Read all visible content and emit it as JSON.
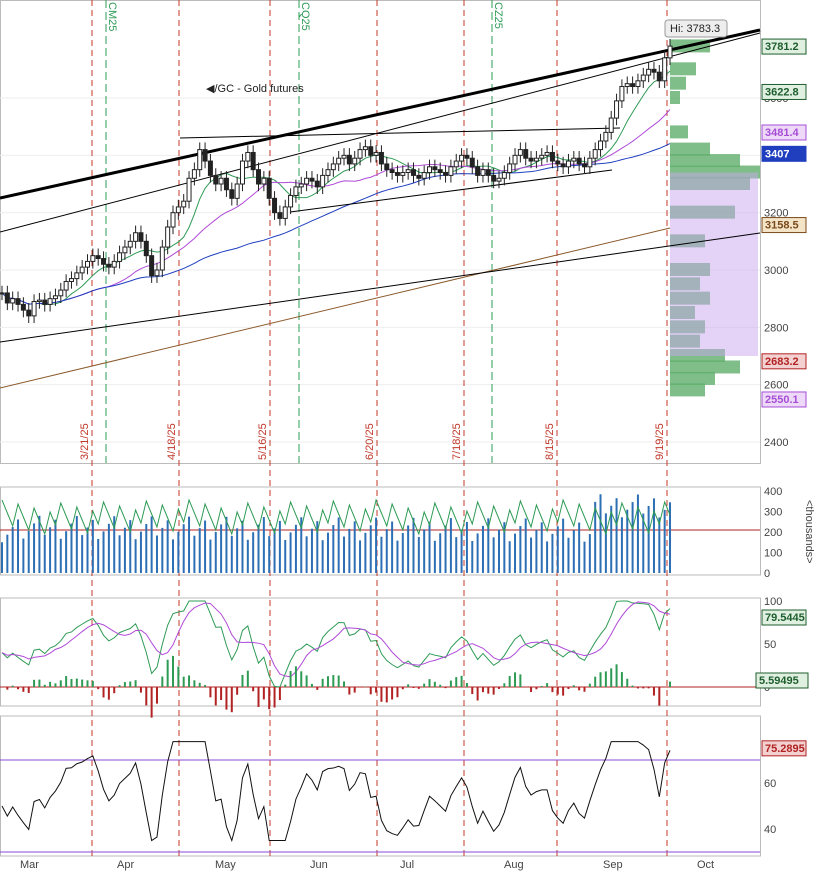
{
  "chart_data": {
    "type": "candlestick",
    "title": "/GC - Gold futures",
    "hi_label": "Hi: 3783.3",
    "price_axis": {
      "ylim": [
        2340,
        3840
      ],
      "ticks": [
        2400,
        2600,
        2800,
        3000,
        3200,
        3400,
        3600
      ]
    },
    "months": [
      "Mar",
      "Apr",
      "May",
      "Jun",
      "Jul",
      "Aug",
      "Sep",
      "Oct"
    ],
    "expiry_dates": [
      "3/21/25",
      "4/18/25",
      "5/16/25",
      "6/20/25",
      "7/18/25",
      "8/15/25",
      "9/19/25"
    ],
    "contract_marks": [
      "CM25",
      "CQ25",
      "CZ25"
    ],
    "price_tags": [
      {
        "label": "3781.2",
        "value": 3781.2,
        "color": "#1e5e2e"
      },
      {
        "label": "3622.8",
        "value": 3622.8,
        "color": "#1e5e2e"
      },
      {
        "label": "3481.4",
        "value": 3481.4,
        "color": "#a64dd6"
      },
      {
        "label": "3407",
        "value": 3407,
        "color": "#1f3fbf"
      },
      {
        "label": "3158.5",
        "value": 3158.5,
        "color": "#7a4a1a"
      },
      {
        "label": "2683.2",
        "value": 2683.2,
        "color": "#b22222"
      },
      {
        "label": "2550.1",
        "value": 2550.1,
        "color": "#a64dd6"
      }
    ],
    "closes": [
      2920,
      2885,
      2900,
      2880,
      2860,
      2840,
      2890,
      2895,
      2880,
      2900,
      2910,
      2930,
      2960,
      2970,
      2990,
      3010,
      3030,
      3050,
      3040,
      3020,
      3010,
      3030,
      3060,
      3080,
      3100,
      3130,
      3100,
      3050,
      2980,
      3000,
      3080,
      3150,
      3200,
      3220,
      3240,
      3320,
      3350,
      3420,
      3380,
      3330,
      3300,
      3320,
      3280,
      3250,
      3300,
      3380,
      3410,
      3350,
      3300,
      3320,
      3250,
      3200,
      3180,
      3220,
      3260,
      3290,
      3300,
      3320,
      3310,
      3290,
      3330,
      3350,
      3370,
      3390,
      3400,
      3370,
      3390,
      3420,
      3430,
      3400,
      3410,
      3370,
      3350,
      3340,
      3330,
      3340,
      3350,
      3330,
      3320,
      3340,
      3360,
      3350,
      3340,
      3330,
      3360,
      3380,
      3400,
      3390,
      3360,
      3330,
      3350,
      3330,
      3310,
      3320,
      3340,
      3370,
      3400,
      3420,
      3390,
      3380,
      3390,
      3400,
      3410,
      3380,
      3370,
      3360,
      3380,
      3390,
      3370,
      3360,
      3390,
      3420,
      3450,
      3480,
      3530,
      3590,
      3640,
      3650,
      3640,
      3660,
      3680,
      3700,
      3690,
      3660,
      3740,
      3781
    ],
    "volume": {
      "yticks": [
        0,
        100,
        200,
        300,
        400
      ],
      "unit_label": "<thousands>",
      "ref_level": 210
    },
    "oscillator": {
      "ticks": [
        0,
        50,
        100
      ],
      "last_main": "79.5445",
      "last_hist": "5.59495"
    },
    "rsi": {
      "ticks": [
        40,
        60
      ],
      "last": "75.2895",
      "upper": 70,
      "lower": 30
    }
  }
}
